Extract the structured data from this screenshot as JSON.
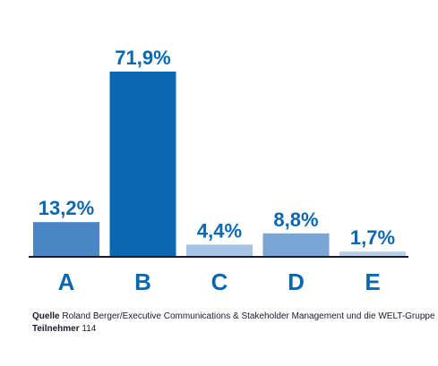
{
  "chart_data": {
    "type": "bar",
    "categories": [
      "A",
      "B",
      "C",
      "D",
      "E"
    ],
    "values": [
      13.2,
      71.9,
      4.4,
      8.8,
      1.7
    ],
    "value_labels": [
      "13,2%",
      "71,9%",
      "4,4%",
      "8,8%",
      "1,7%"
    ],
    "bar_colors": [
      "#4a86c5",
      "#0a68b0",
      "#a7c4e6",
      "#7aa6d6",
      "#b7d0ec"
    ],
    "title": "",
    "xlabel": "",
    "ylabel": "",
    "ylim": [
      0,
      71.9
    ],
    "grid": false,
    "legend": "none"
  },
  "colors": {
    "label": "#0a68b0",
    "axis": "#1a1a2e",
    "footer_text": "#1a1a2e"
  },
  "footer": {
    "source_label": "Quelle",
    "source_text": "Roland Berger/Executive Communications & Stakeholder Management und die WELT-Gruppe",
    "participants_label": "Teilnehmer",
    "participants_value": "114"
  }
}
